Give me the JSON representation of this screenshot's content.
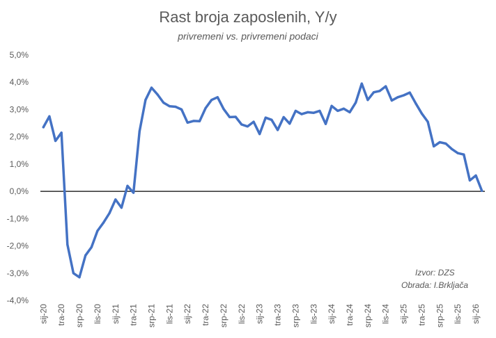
{
  "chart_data": {
    "type": "line",
    "title": "Rast broja zaposlenih, Y/y",
    "subtitle": "privremeni vs. privremeni podaci",
    "xlabel": "",
    "ylabel": "",
    "ylim": [
      -4.0,
      5.0
    ],
    "yticks": [
      -4.0,
      -3.0,
      -2.0,
      -1.0,
      0.0,
      1.0,
      2.0,
      3.0,
      4.0,
      5.0
    ],
    "ytick_labels": [
      "-4,0%",
      "-3,0%",
      "-2,0%",
      "-1,0%",
      "0,0%",
      "1,0%",
      "2,0%",
      "3,0%",
      "4,0%",
      "5,0%"
    ],
    "grid": false,
    "legend": "none",
    "line_color": "#4472C4",
    "zero_line_color": "#000000",
    "x_categories": [
      "sij-20",
      "velj-20",
      "ožu-20",
      "tra-20",
      "svi-20",
      "lip-20",
      "srp-20",
      "kol-20",
      "ruj-20",
      "lis-20",
      "stu-20",
      "pro-20",
      "sij-21",
      "velj-21",
      "ožu-21",
      "tra-21",
      "svi-21",
      "lip-21",
      "srp-21",
      "kol-21",
      "ruj-21",
      "lis-21",
      "stu-21",
      "pro-21",
      "sij-22",
      "velj-22",
      "ožu-22",
      "tra-22",
      "svi-22",
      "lip-22",
      "srp-22",
      "kol-22",
      "ruj-22",
      "lis-22",
      "stu-22",
      "pro-22",
      "sij-23",
      "velj-23",
      "ožu-23",
      "tra-23",
      "svi-23",
      "lip-23",
      "srp-23",
      "kol-23",
      "ruj-23",
      "lis-23",
      "stu-23",
      "pro-23",
      "sij-24",
      "velj-24",
      "ožu-24",
      "tra-24",
      "svi-24",
      "lip-24",
      "srp-24",
      "kol-24",
      "ruj-24",
      "lis-24",
      "stu-24",
      "pro-24",
      "sij-25",
      "velj-25",
      "ožu-25",
      "tra-25",
      "svi-25",
      "lip-25",
      "srp-25",
      "kol-25",
      "ruj-25",
      "lis-25",
      "stu-25",
      "pro-25",
      "sij-26",
      "velj-26"
    ],
    "tick_labels": [
      "sij-20",
      "tra-20",
      "srp-20",
      "lis-20",
      "sij-21",
      "tra-21",
      "srp-21",
      "lis-21",
      "sij-22",
      "tra-22",
      "srp-22",
      "lis-22",
      "sij-23",
      "tra-23",
      "srp-23",
      "lis-23",
      "sij-24",
      "tra-24",
      "srp-24",
      "lis-24",
      "sij-25",
      "tra-25",
      "srp-25",
      "lis-25",
      "sij-26"
    ],
    "series": [
      {
        "values": [
          2.35,
          2.75,
          1.85,
          2.15,
          -1.95,
          -3.0,
          -3.15,
          -2.35,
          -2.05,
          -1.45,
          -1.15,
          -0.8,
          -0.3,
          -0.6,
          0.2,
          -0.05,
          2.2,
          3.35,
          3.8,
          3.55,
          3.25,
          3.12,
          3.1,
          3.0,
          2.52,
          2.58,
          2.57,
          3.05,
          3.35,
          3.45,
          3.02,
          2.72,
          2.73,
          2.45,
          2.38,
          2.55,
          2.1,
          2.7,
          2.62,
          2.25,
          2.72,
          2.48,
          2.95,
          2.83,
          2.9,
          2.88,
          2.95,
          2.47,
          3.13,
          2.95,
          3.03,
          2.9,
          3.25,
          3.95,
          3.35,
          3.63,
          3.68,
          3.85,
          3.33,
          3.45,
          3.52,
          3.62,
          3.22,
          2.85,
          2.55,
          1.65,
          1.8,
          1.75,
          1.55,
          1.4,
          1.35,
          0.4,
          0.58,
          0.02
        ]
      }
    ]
  },
  "annotations": {
    "source": "Izvor: DZS",
    "credit": "Obrada: I.Brkljača"
  }
}
